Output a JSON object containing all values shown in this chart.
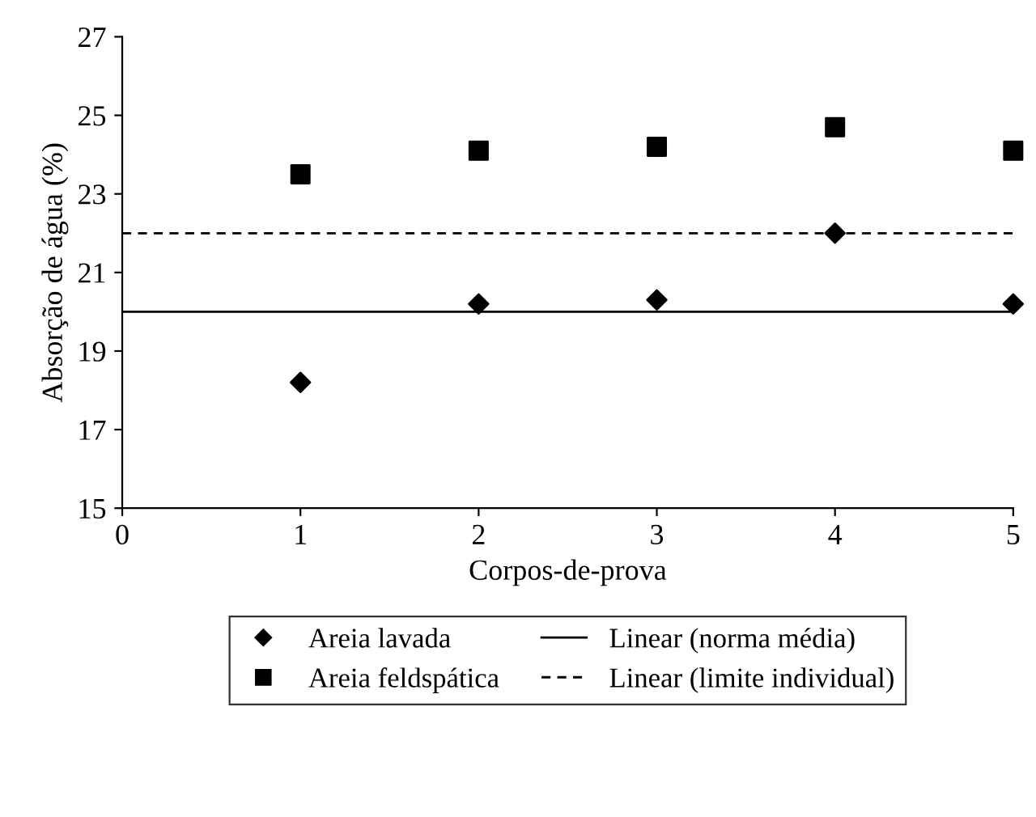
{
  "chart_data": {
    "type": "scatter",
    "xlabel": "Corpos-de-prova",
    "ylabel": "Absorção de água (%)",
    "x": [
      1,
      2,
      3,
      4,
      5
    ],
    "series": [
      {
        "name": "Areia lavada",
        "color": "#000000",
        "marker": "diamond",
        "values": [
          18.2,
          20.2,
          20.3,
          22.0,
          20.2
        ]
      },
      {
        "name": "Areia feldspática",
        "color": "#000000",
        "marker": "square",
        "values": [
          23.5,
          24.1,
          24.2,
          24.7,
          24.1
        ]
      }
    ],
    "ref_lines": [
      {
        "axis": "y",
        "value": 20,
        "label": "Linear (norma média)",
        "color": "#000000",
        "line_style": "solid"
      },
      {
        "axis": "y",
        "value": 22,
        "label": "Linear (limite individual)",
        "color": "#000000",
        "line_style": "dashed"
      }
    ],
    "xlim": [
      0,
      5
    ],
    "xticks": [
      0,
      1,
      2,
      3,
      4,
      5
    ],
    "ylim": [
      15,
      27
    ],
    "yticks": [
      15,
      17,
      19,
      21,
      23,
      25,
      27
    ],
    "grid": false,
    "legend": "bottom"
  }
}
